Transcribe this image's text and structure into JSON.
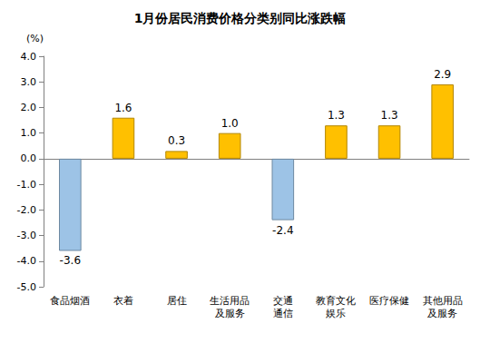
{
  "chart_data": {
    "type": "bar",
    "title": "1月份居民消费价格分类别同比涨跌幅",
    "y_label": "(%)",
    "categories": [
      "食品烟酒",
      "衣着",
      "居住",
      "生活用品\n及服务",
      "交通\n通信",
      "教育文化\n娱乐",
      "医疗保健",
      "其他用品\n及服务"
    ],
    "values": [
      -3.6,
      1.6,
      0.3,
      1.0,
      -2.4,
      1.3,
      1.3,
      2.9
    ],
    "value_labels": [
      "-3.6",
      "1.6",
      "0.3",
      "1.0",
      "-2.4",
      "1.3",
      "1.3",
      "2.9"
    ],
    "colors": [
      "#9DC3E6",
      "#FFC000",
      "#FFC000",
      "#FFC000",
      "#9DC3E6",
      "#FFC000",
      "#FFC000",
      "#FFC000"
    ],
    "data_labels": true,
    "grid": false,
    "ylim": [
      -5,
      4
    ],
    "yticks": [
      {
        "value": -5,
        "label": "-5.0"
      },
      {
        "value": -4,
        "label": "-4.0"
      },
      {
        "value": -3,
        "label": "-3.0"
      },
      {
        "value": -2,
        "label": "-2.0"
      },
      {
        "value": -1,
        "label": "-1.0"
      },
      {
        "value": 0,
        "label": "0.0"
      },
      {
        "value": 1,
        "label": "1.0"
      },
      {
        "value": 2,
        "label": "2.0"
      },
      {
        "value": 3,
        "label": "3.0"
      },
      {
        "value": 4,
        "label": "4.0"
      }
    ]
  }
}
